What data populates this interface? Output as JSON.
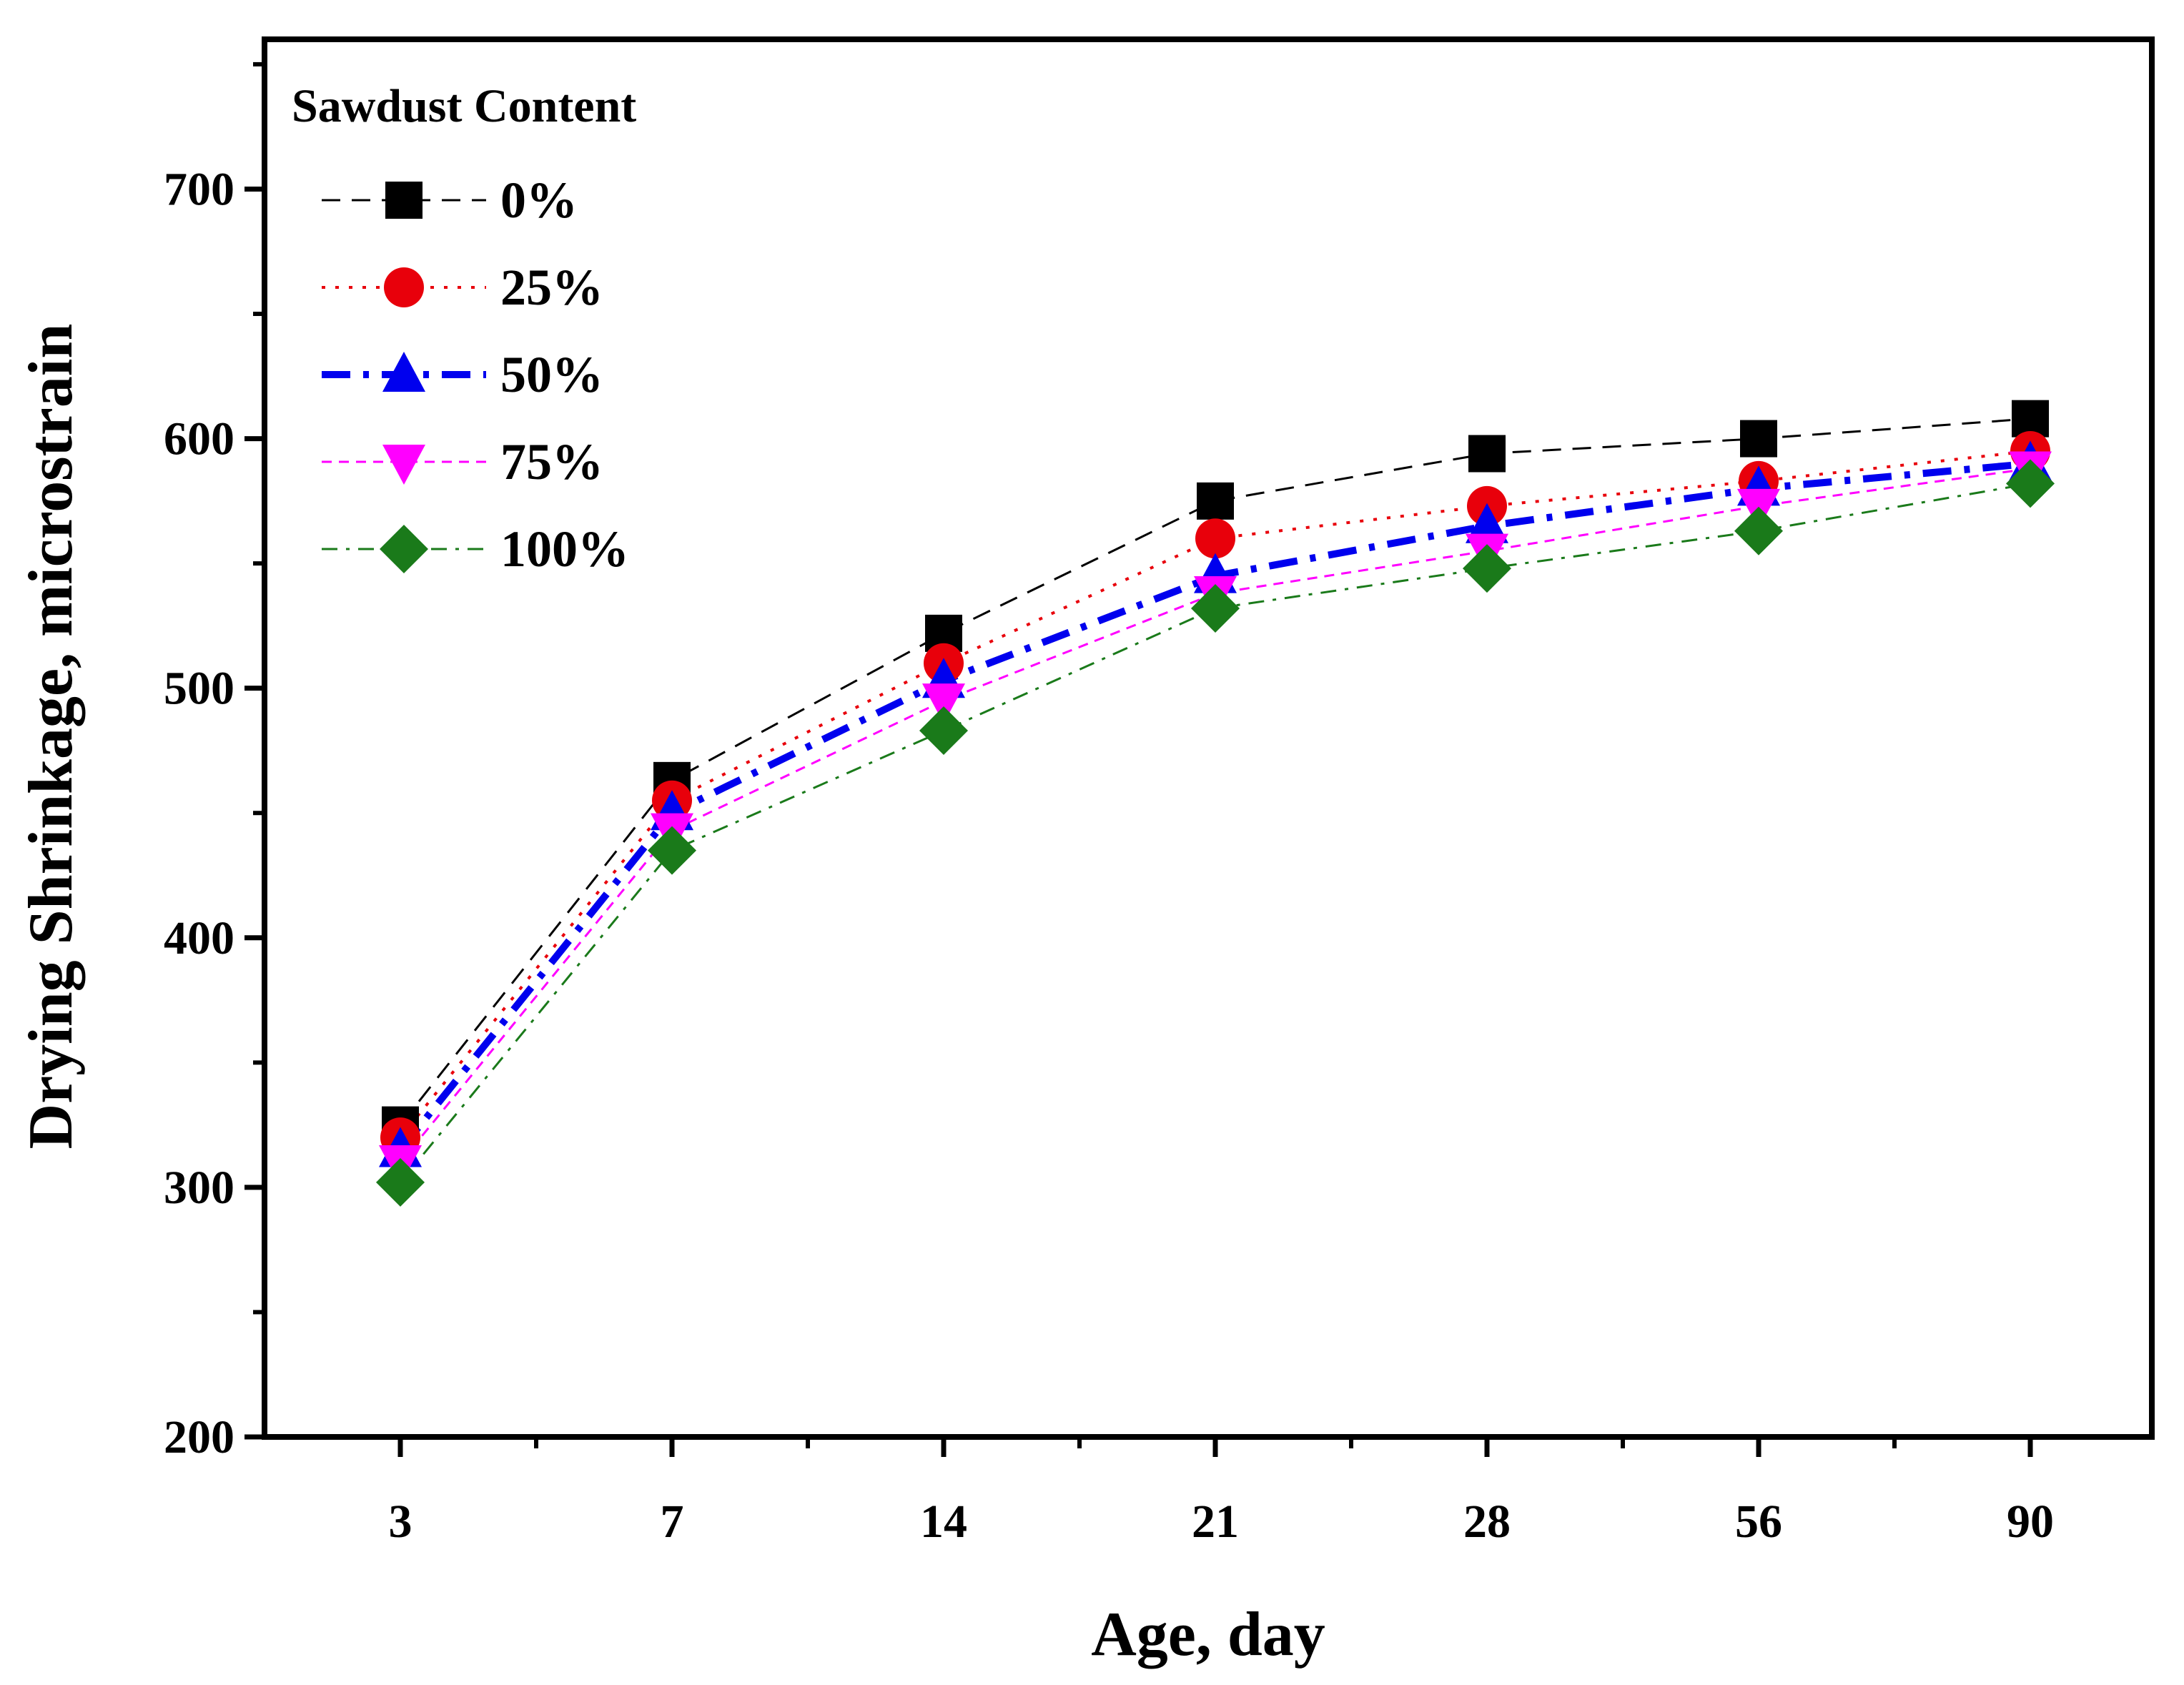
{
  "chart_data": {
    "type": "line",
    "title": "",
    "xlabel": "Age, day",
    "ylabel": "Drying Shrinkage, microstrain",
    "categories": [
      "3",
      "7",
      "14",
      "21",
      "28",
      "56",
      "90"
    ],
    "ylim": [
      200,
      760
    ],
    "yticks": [
      200,
      300,
      400,
      500,
      600,
      700
    ],
    "legend": {
      "title": "Sawdust Content",
      "placement": "top-left"
    },
    "series": [
      {
        "name": "0%",
        "values": [
          325,
          463,
          522,
          575,
          594,
          600,
          608
        ],
        "color": "#000000",
        "marker": "square",
        "line": "dashed"
      },
      {
        "name": "25%",
        "values": [
          320,
          455,
          510,
          560,
          573,
          583,
          595
        ],
        "color": "#e8000b",
        "marker": "circle",
        "line": "dotted"
      },
      {
        "name": "50%",
        "values": [
          315,
          450,
          503,
          545,
          565,
          580,
          590
        ],
        "color": "#0000ee",
        "marker": "triangle-up",
        "line": "dash-dot-thick"
      },
      {
        "name": "75%",
        "values": [
          310,
          443,
          495,
          538,
          555,
          573,
          588
        ],
        "color": "#ff00ff",
        "marker": "triangle-down",
        "line": "short-dash"
      },
      {
        "name": "100%",
        "values": [
          302,
          435,
          483,
          532,
          548,
          563,
          582
        ],
        "color": "#1a7a1a",
        "marker": "diamond",
        "line": "dash-dot"
      }
    ],
    "grid": false
  }
}
